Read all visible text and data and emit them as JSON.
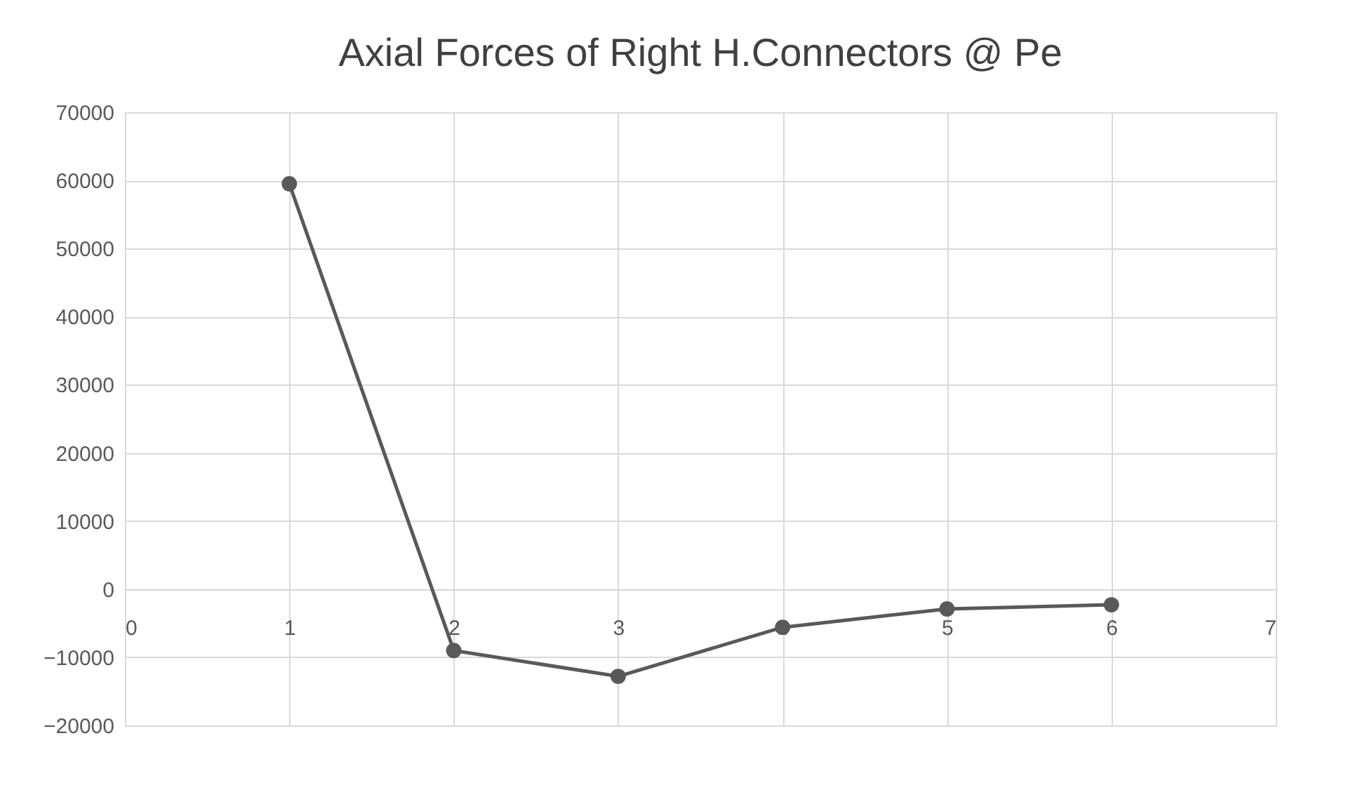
{
  "chart_data": {
    "type": "line",
    "title": "Axial Forces of Right H.Connectors  @ Pe",
    "x": [
      1,
      2,
      3,
      4,
      5,
      6
    ],
    "series": [
      {
        "color": "#595959",
        "values": [
          59500,
          -9000,
          -12800,
          -5600,
          -2900,
          -2300
        ]
      }
    ],
    "xlim": [
      0,
      7
    ],
    "xticks": [
      0,
      1,
      2,
      3,
      4,
      5,
      6,
      7
    ],
    "ylim": [
      -20000,
      70000
    ],
    "yticks": [
      -20000,
      -10000,
      0,
      10000,
      20000,
      30000,
      40000,
      50000,
      60000,
      70000
    ],
    "grid": true,
    "marker": "circle",
    "line_style": "solid"
  }
}
